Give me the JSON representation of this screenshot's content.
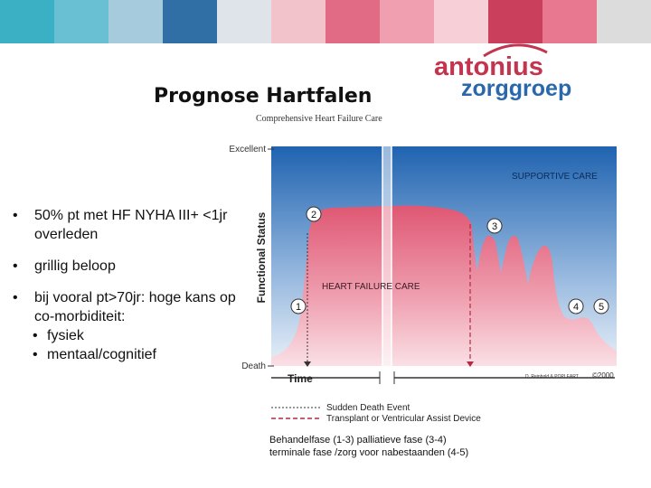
{
  "banner": {
    "colors": [
      "#3bb0c4",
      "#69c0d2",
      "#a6cbdd",
      "#2f6fa5",
      "#dfe4ea",
      "#f3c3cc",
      "#e16b85",
      "#ef9fb0",
      "#f6cfd7",
      "#c93f5c",
      "#e7788f",
      "#dcdcdc"
    ]
  },
  "logo": {
    "line1": "antonius",
    "line2": "zorggroep",
    "colors": {
      "red": "#c4344f",
      "blue": "#2a68ad"
    }
  },
  "title": "Prognose Hartfalen",
  "figure": {
    "subtitle": "Comprehensive Heart Failure Care",
    "y_top_label": "Excellent",
    "y_bottom_label": "Death",
    "y_axis_label": "Functional Status",
    "x_axis_label": "Time",
    "supportive_care": "SUPPORTIVE CARE",
    "heart_failure_care": "HEART FAILURE CARE",
    "markers": [
      "1",
      "2",
      "3",
      "4",
      "5"
    ],
    "credit": "D. Reinbold & POPLEART",
    "copyright": "©2000",
    "legend": {
      "sudden": "Sudden Death Event",
      "transplant": "Transplant or Ventricular Assist Device"
    },
    "colors": {
      "blue": "#2f71b8",
      "red": "#e56a82",
      "pink_light": "#f5c7cf"
    }
  },
  "bullets": [
    {
      "text": "50% pt met HF NYHA III+ <1jr overleden"
    },
    {
      "text": "grillig beloop"
    },
    {
      "text": "bij vooral pt>70jr: hoge kans op co-morbiditeit:",
      "subs": [
        "fysiek",
        "mentaal/cognitief"
      ]
    }
  ],
  "caption": {
    "line1": "Behandelfase (1-3) palliatieve fase (3-4)",
    "line2": "terminale fase /zorg voor nabestaanden (4-5)"
  }
}
